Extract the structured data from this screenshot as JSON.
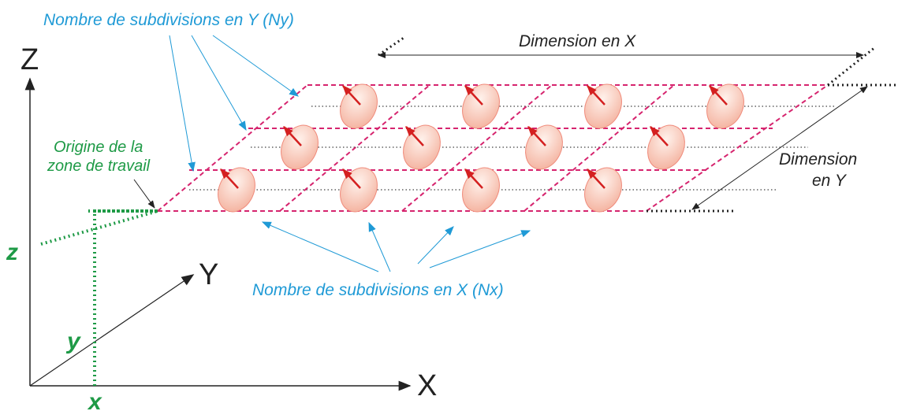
{
  "labels": {
    "ny": "Nombre de subdivisions en Y (Ny)",
    "nx": "Nombre de subdivisions en X (Nx)",
    "dim_x": "Dimension  en X",
    "dim_y_line1": "Dimension",
    "dim_y_line2": "en Y",
    "origin_line1": "Origine de la",
    "origin_line2": "zone de travail"
  },
  "axes": {
    "x": "X",
    "y": "Y",
    "z": "Z"
  },
  "coords": {
    "x": "x",
    "y": "y",
    "z": "z"
  },
  "grid": {
    "nx": 4,
    "ny": 3
  },
  "colors": {
    "grid_line": "#d6246e",
    "arrow_red": "#d42020",
    "ellipse_fill": "#f7c2b0",
    "ellipse_stroke": "#f08a7a",
    "label_blue": "#1f9ad6",
    "label_green": "#1e9a46",
    "axis": "#222222"
  }
}
